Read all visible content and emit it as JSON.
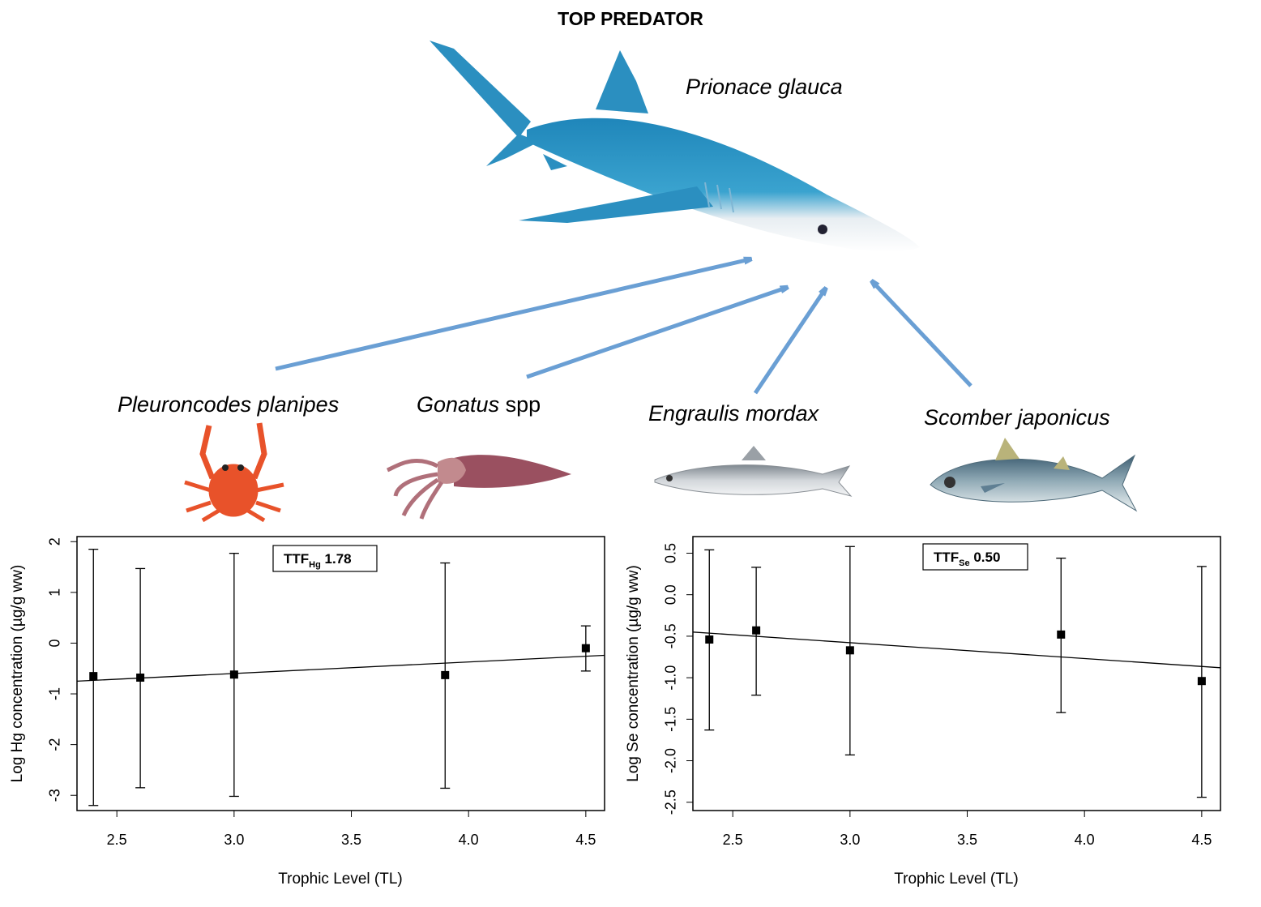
{
  "figure": {
    "title": "TOP PREDATOR",
    "predator": "Prionace glauca",
    "prey": [
      {
        "name": "Pleuroncodes planipes",
        "suffix": ""
      },
      {
        "name": "Gonatus",
        "suffix": " spp"
      },
      {
        "name": "Engraulis mordax",
        "suffix": ""
      },
      {
        "name": "Scomber japonicus",
        "suffix": ""
      }
    ],
    "colors": {
      "arrow": "#6a9fd4",
      "shark": "#2b8fc0",
      "crab": "#e8522a",
      "squid": "#9a5060",
      "anchovy": "#a8adb3",
      "mackerel": "#5f7f93"
    }
  },
  "chart_data": [
    {
      "type": "scatter",
      "xlabel": "Trophic Level (TL)",
      "ylabel": "Log Hg concentration (µg/g ww)",
      "annotation": {
        "prefix": "TTF",
        "sub": "Hg",
        "value": "1.78"
      },
      "xlim": [
        2.33,
        4.58
      ],
      "ylim": [
        -3.3,
        2.1
      ],
      "xticks": [
        2.5,
        3.0,
        3.5,
        4.0,
        4.5
      ],
      "xtick_labels": [
        "2.5",
        "3.0",
        "3.5",
        "4.0",
        "4.5"
      ],
      "yticks": [
        2,
        1,
        0,
        -1,
        -2,
        -3
      ],
      "ytick_labels": [
        "2",
        "1",
        "0",
        "-1",
        "-2",
        "-3"
      ],
      "points": [
        {
          "x": 2.4,
          "y": -0.65,
          "low": -3.2,
          "high": 1.85
        },
        {
          "x": 2.6,
          "y": -0.68,
          "low": -2.85,
          "high": 1.47
        },
        {
          "x": 3.0,
          "y": -0.62,
          "low": -3.02,
          "high": 1.77
        },
        {
          "x": 3.9,
          "y": -0.63,
          "low": -2.86,
          "high": 1.58
        },
        {
          "x": 4.5,
          "y": -0.1,
          "low": -0.55,
          "high": 0.34
        }
      ],
      "fit": {
        "x": [
          2.33,
          4.58
        ],
        "y": [
          -0.75,
          -0.24
        ]
      }
    },
    {
      "type": "scatter",
      "xlabel": "Trophic Level (TL)",
      "ylabel": "Log Se concentration (µg/g ww)",
      "annotation": {
        "prefix": "TTF",
        "sub": "Se",
        "value": "0.50"
      },
      "xlim": [
        2.33,
        4.58
      ],
      "ylim": [
        -2.6,
        0.7
      ],
      "xticks": [
        2.5,
        3.0,
        3.5,
        4.0,
        4.5
      ],
      "xtick_labels": [
        "2.5",
        "3.0",
        "3.5",
        "4.0",
        "4.5"
      ],
      "yticks": [
        0.5,
        0.0,
        -0.5,
        -1.0,
        -1.5,
        -2.0,
        -2.5
      ],
      "ytick_labels": [
        "0.5",
        "0.0",
        "-0.5",
        "-1.0",
        "-1.5",
        "-2.0",
        "-2.5"
      ],
      "points": [
        {
          "x": 2.4,
          "y": -0.54,
          "low": -1.63,
          "high": 0.54
        },
        {
          "x": 2.6,
          "y": -0.43,
          "low": -1.21,
          "high": 0.33
        },
        {
          "x": 3.0,
          "y": -0.67,
          "low": -1.93,
          "high": 0.58
        },
        {
          "x": 3.9,
          "y": -0.48,
          "low": -1.42,
          "high": 0.44
        },
        {
          "x": 4.5,
          "y": -1.04,
          "low": -2.44,
          "high": 0.34
        }
      ],
      "fit": {
        "x": [
          2.33,
          4.58
        ],
        "y": [
          -0.45,
          -0.88
        ]
      }
    }
  ]
}
